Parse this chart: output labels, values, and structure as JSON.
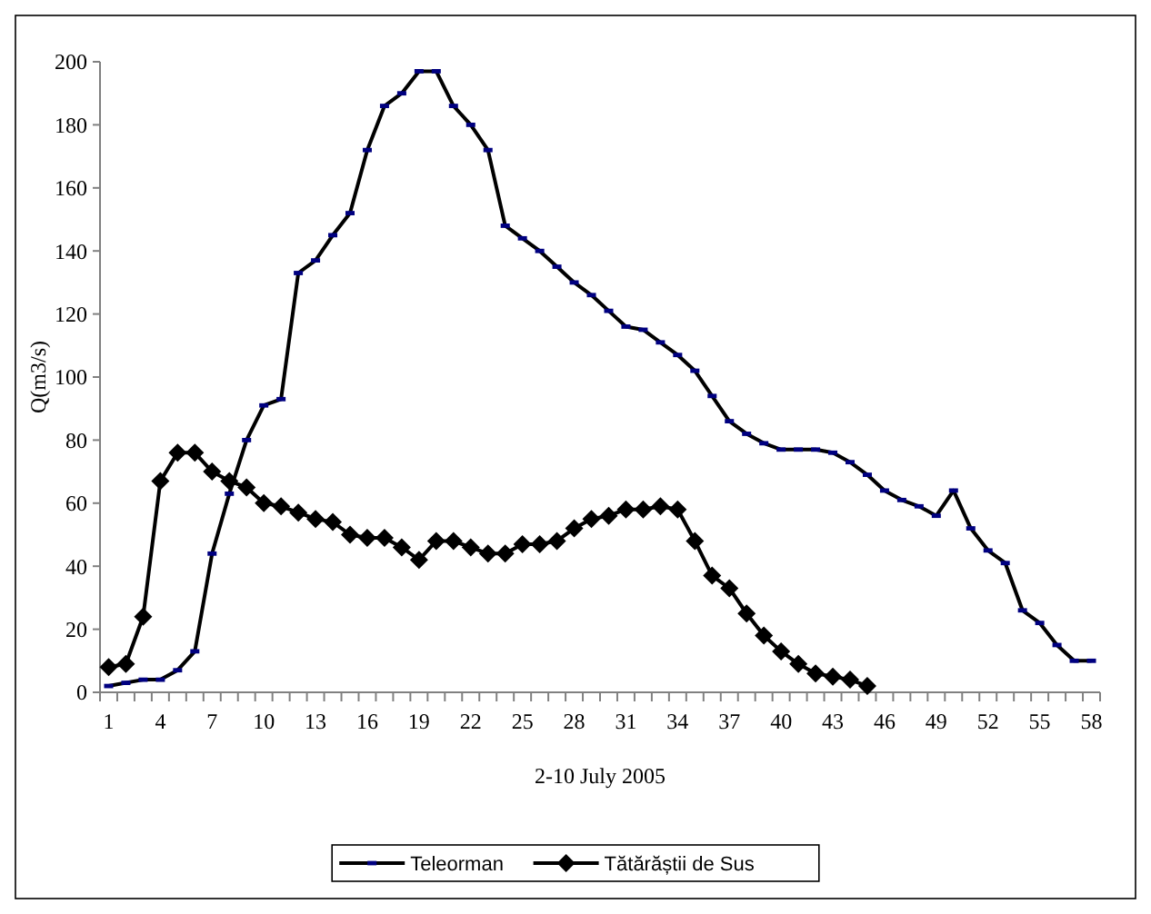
{
  "chart_data": {
    "type": "line",
    "xlabel": "2-10 July 2005",
    "ylabel": "Q(m3/s)",
    "categories": [
      "1",
      null,
      null,
      "4",
      null,
      null,
      "7",
      null,
      null,
      "10",
      null,
      null,
      "13",
      null,
      null,
      "16",
      null,
      null,
      "19",
      null,
      null,
      "22",
      null,
      null,
      "25",
      null,
      null,
      "28",
      null,
      null,
      "31",
      null,
      null,
      "34",
      null,
      null,
      "37",
      null,
      null,
      "40",
      null,
      null,
      "43",
      null,
      null,
      "46",
      null,
      null,
      "49",
      null,
      null,
      "52",
      null,
      null,
      "55",
      null,
      null,
      "58"
    ],
    "series": [
      {
        "name": "Teleorman",
        "color": "#000000",
        "marker": "square",
        "values": [
          2,
          3,
          4,
          4,
          7,
          13,
          44,
          63,
          80,
          91,
          93,
          133,
          137,
          145,
          152,
          172,
          186,
          190,
          197,
          197,
          186,
          180,
          172,
          148,
          144,
          140,
          135,
          130,
          126,
          121,
          116,
          115,
          111,
          107,
          102,
          94,
          86,
          82,
          79,
          77,
          77,
          77,
          76,
          73,
          69,
          64,
          61,
          59,
          56,
          64,
          52,
          45,
          41,
          26,
          22,
          15,
          10,
          10
        ]
      },
      {
        "name": "Tătărăștii de Sus",
        "color": "#000000",
        "marker": "diamond",
        "values": [
          8,
          9,
          24,
          67,
          76,
          76,
          70,
          67,
          65,
          60,
          59,
          57,
          55,
          54,
          50,
          49,
          49,
          46,
          42,
          48,
          48,
          46,
          44,
          44,
          47,
          47,
          48,
          52,
          55,
          56,
          58,
          58,
          59,
          58,
          48,
          37,
          33,
          25,
          18,
          13,
          9,
          6,
          5,
          4,
          2,
          null,
          null,
          null,
          null,
          null,
          null,
          null,
          null,
          null,
          null,
          null,
          null,
          null
        ]
      }
    ],
    "ylim": [
      0,
      200
    ],
    "yticks": [
      0,
      20,
      40,
      60,
      80,
      100,
      120,
      140,
      160,
      180,
      200
    ],
    "grid": false,
    "legend": "bottom",
    "line_style": "solid"
  }
}
